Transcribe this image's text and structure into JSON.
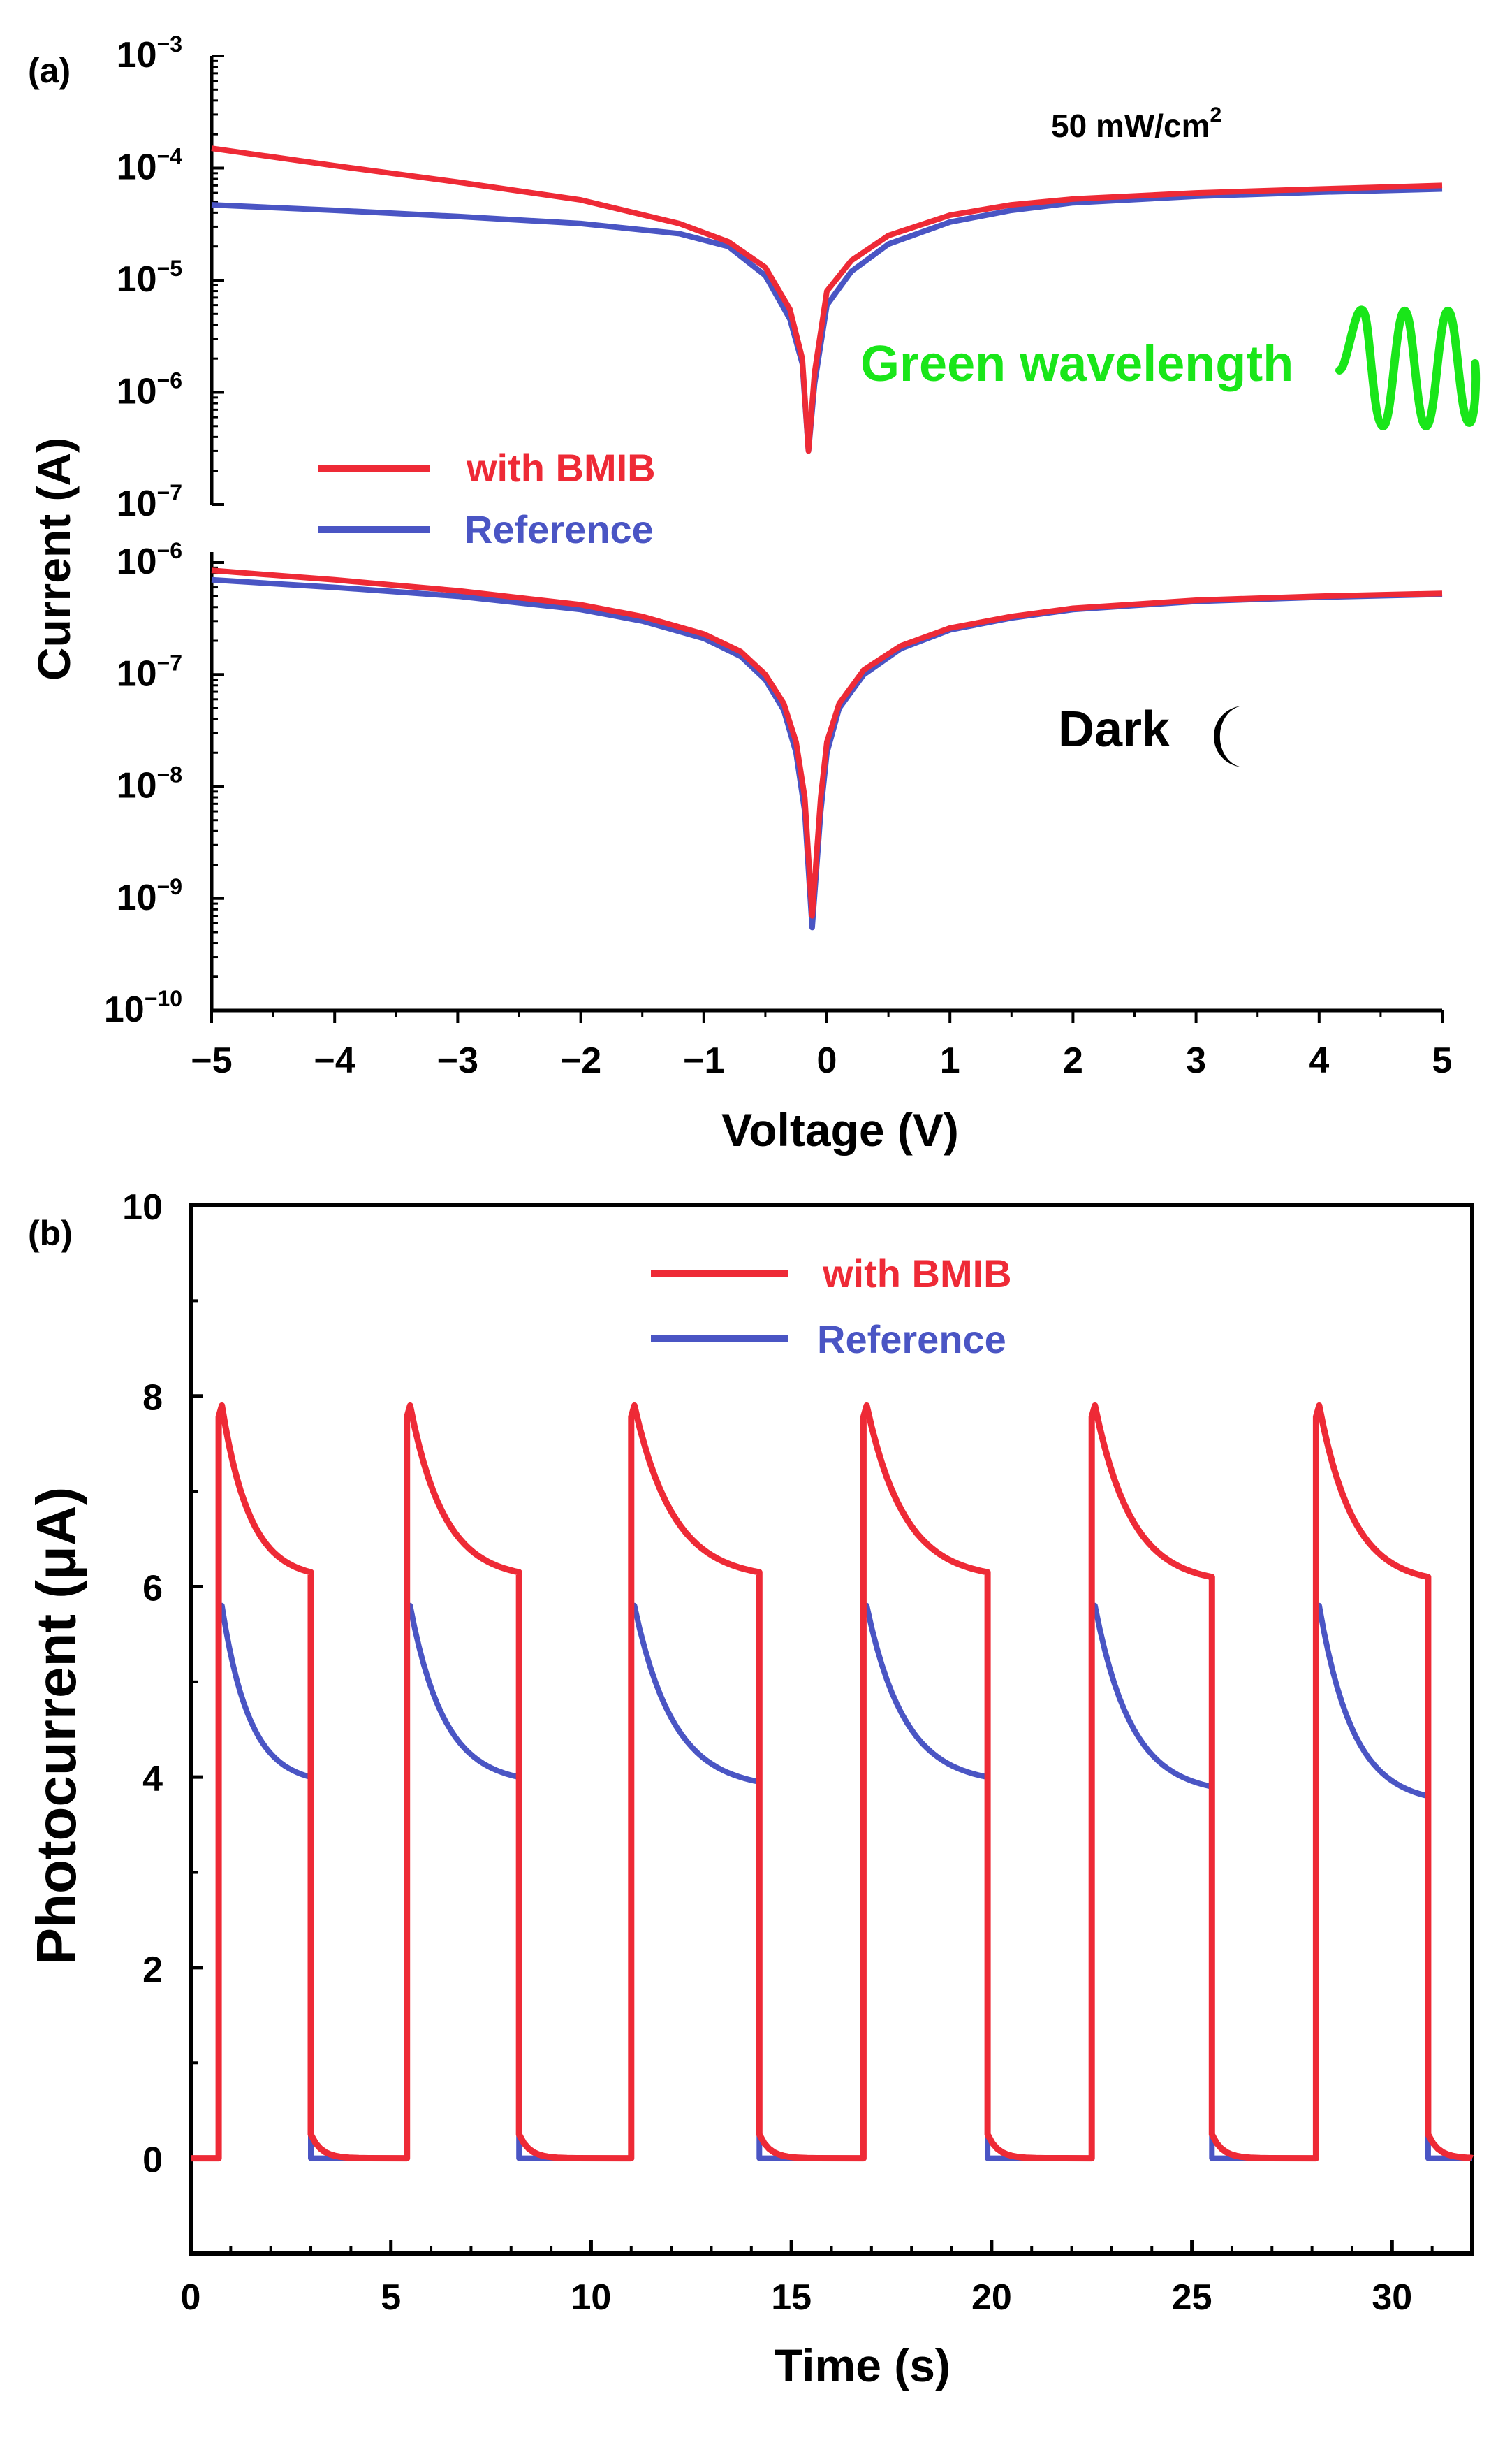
{
  "chart_data": [
    {
      "panel_label": "(a)",
      "type": "line",
      "y_scale": "log",
      "xlabel": "Voltage (V)",
      "ylabel": "Current (A)",
      "xlim": [
        -5,
        5
      ],
      "x_ticks": [
        -5,
        -4,
        -3,
        -2,
        -1,
        0,
        1,
        2,
        3,
        4,
        5
      ],
      "x_tick_labels": [
        "−5",
        "−4",
        "−3",
        "−2",
        "−1",
        "0",
        "1",
        "2",
        "3",
        "4",
        "5"
      ],
      "colors": {
        "with_bmib": "#ee2a36",
        "reference": "#4a55c4",
        "green": "#19e619"
      },
      "legend": [
        "with BMIB",
        "Reference"
      ],
      "subplots": [
        {
          "name": "illuminated",
          "annotation": "50 mW/cm",
          "annotation_sup": "2",
          "label": "Green wavelength",
          "ylim_exp": [
            -7,
            -3
          ],
          "y_tick_base": "10",
          "y_tick_exponents": [
            "−3",
            "−4",
            "−5",
            "−6",
            "−7"
          ],
          "series": [
            {
              "name": "with BMIB",
              "x": [
                -5,
                -4,
                -3,
                -2,
                -1.2,
                -0.8,
                -0.5,
                -0.3,
                -0.2,
                -0.15,
                -0.1,
                0,
                0.2,
                0.5,
                1,
                1.5,
                2,
                3,
                4,
                5
              ],
              "y": [
                0.00015,
                0.000105,
                7.5e-05,
                5.2e-05,
                3.2e-05,
                2.2e-05,
                1.3e-05,
                5.5e-06,
                2e-06,
                3e-07,
                1.5e-06,
                8e-06,
                1.5e-05,
                2.5e-05,
                3.8e-05,
                4.7e-05,
                5.3e-05,
                6e-05,
                6.5e-05,
                7e-05
              ]
            },
            {
              "name": "Reference",
              "x": [
                -5,
                -4,
                -3,
                -2,
                -1.2,
                -0.8,
                -0.5,
                -0.3,
                -0.2,
                -0.15,
                -0.1,
                0,
                0.2,
                0.5,
                1,
                1.5,
                2,
                3,
                4,
                5
              ],
              "y": [
                4.7e-05,
                4.2e-05,
                3.7e-05,
                3.2e-05,
                2.6e-05,
                2e-05,
                1.1e-05,
                4.5e-06,
                1.8e-06,
                3e-07,
                1.2e-06,
                6e-06,
                1.2e-05,
                2.1e-05,
                3.3e-05,
                4.2e-05,
                4.9e-05,
                5.6e-05,
                6.1e-05,
                6.5e-05
              ]
            }
          ]
        },
        {
          "name": "dark",
          "label": "Dark",
          "ylim_exp": [
            -10,
            -6
          ],
          "y_tick_base": "10",
          "y_tick_exponents": [
            "−6",
            "−7",
            "−8",
            "−9",
            "−10"
          ],
          "series": [
            {
              "name": "with BMIB",
              "x": [
                -5,
                -4,
                -3,
                -2,
                -1.5,
                -1,
                -0.7,
                -0.5,
                -0.35,
                -0.25,
                -0.18,
                -0.12,
                -0.05,
                0,
                0.1,
                0.3,
                0.6,
                1,
                1.5,
                2,
                3,
                4,
                5
              ],
              "y": [
                8.5e-07,
                7e-07,
                5.6e-07,
                4.2e-07,
                3.3e-07,
                2.3e-07,
                1.6e-07,
                1e-07,
                5.5e-08,
                2.5e-08,
                8e-09,
                7e-10,
                8e-09,
                2.5e-08,
                5.5e-08,
                1.1e-07,
                1.8e-07,
                2.6e-07,
                3.3e-07,
                3.9e-07,
                4.6e-07,
                5e-07,
                5.3e-07
              ]
            },
            {
              "name": "Reference",
              "x": [
                -5,
                -4,
                -3,
                -2,
                -1.5,
                -1,
                -0.7,
                -0.5,
                -0.35,
                -0.25,
                -0.18,
                -0.12,
                -0.05,
                0,
                0.1,
                0.3,
                0.6,
                1,
                1.5,
                2,
                3,
                4,
                5
              ],
              "y": [
                7e-07,
                6e-07,
                5e-07,
                3.8e-07,
                3e-07,
                2.1e-07,
                1.45e-07,
                9e-08,
                4.8e-08,
                2e-08,
                6e-09,
                5.5e-10,
                6e-09,
                2e-08,
                5e-08,
                1e-07,
                1.7e-07,
                2.5e-07,
                3.2e-07,
                3.8e-07,
                4.5e-07,
                4.9e-07,
                5.2e-07
              ]
            }
          ]
        }
      ]
    },
    {
      "panel_label": "(b)",
      "type": "line",
      "xlabel": "Time (s)",
      "ylabel": "Photocurrent (μA)",
      "xlim": [
        0,
        32
      ],
      "ylim": [
        -1,
        10
      ],
      "x_ticks": [
        0,
        5,
        10,
        15,
        20,
        25,
        30
      ],
      "y_ticks": [
        0,
        2,
        4,
        6,
        8,
        10
      ],
      "legend": [
        "with BMIB",
        "Reference"
      ],
      "on_intervals": [
        [
          0.7,
          3.0
        ],
        [
          5.4,
          8.2
        ],
        [
          11.0,
          14.2
        ],
        [
          16.8,
          19.9
        ],
        [
          22.5,
          25.5
        ],
        [
          28.1,
          30.9
        ]
      ],
      "series": [
        {
          "name": "with BMIB",
          "peak": 7.9,
          "plateau_end": [
            6.15,
            6.15,
            6.15,
            6.15,
            6.1,
            6.1
          ],
          "decay_after_off": 0.25
        },
        {
          "name": "Reference",
          "peak": 5.8,
          "plateau_end": [
            4.0,
            4.0,
            3.95,
            4.0,
            3.9,
            3.8
          ],
          "decay_after_off": 0.0
        }
      ]
    }
  ]
}
